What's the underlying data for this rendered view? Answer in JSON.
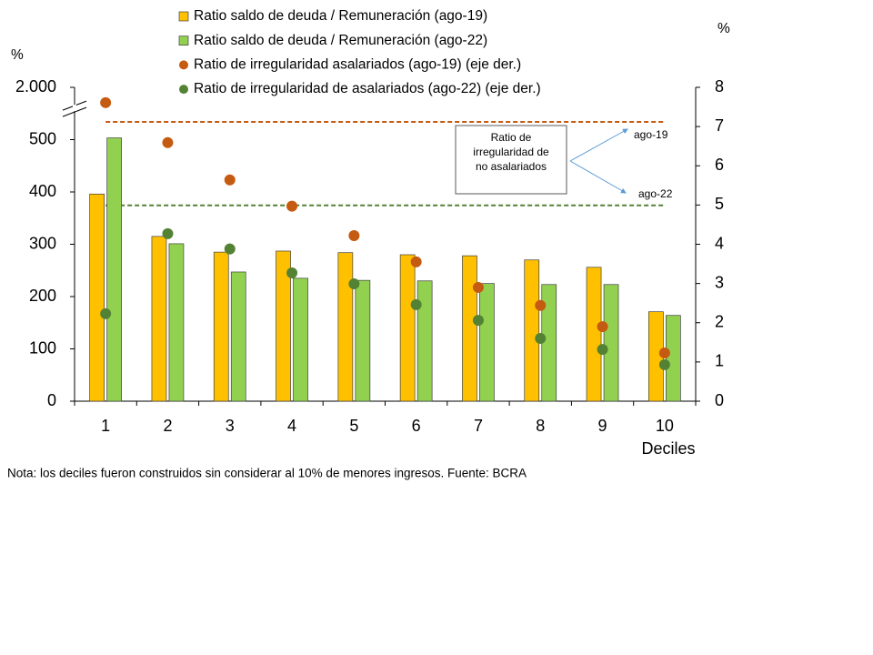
{
  "chart_data": {
    "type": "bar",
    "y_label": "%",
    "y2_label": "%",
    "x_label": "Deciles",
    "note": "Nota: los deciles fueron construidos sin considerar al 10% de menores ingresos. Fuente: BCRA",
    "categories": [
      "1",
      "2",
      "3",
      "4",
      "5",
      "6",
      "7",
      "8",
      "9",
      "10"
    ],
    "series": [
      {
        "name": "Ratio saldo de deuda / Remuneración (ago-19)",
        "type": "bar",
        "color": "#ffc000",
        "values": [
          396,
          315,
          285,
          287,
          284,
          280,
          278,
          270,
          256,
          171
        ]
      },
      {
        "name": "Ratio saldo de deuda / Remuneración (ago-22)",
        "type": "bar",
        "color": "#92d050",
        "values": [
          550,
          301,
          247,
          235,
          231,
          230,
          225,
          223,
          223,
          164
        ]
      },
      {
        "name": "Ratio de irregularidad asalariados (ago-19) (eje der.)",
        "type": "scatter",
        "axis": "y2",
        "color": "#c55a11",
        "values": [
          7.61,
          6.59,
          5.64,
          4.97,
          4.22,
          3.55,
          2.9,
          2.44,
          1.9,
          1.23
        ]
      },
      {
        "name": "Ratio de irregularidad de asalariados (ago-22) (eje der.)",
        "type": "scatter",
        "axis": "y2",
        "color": "#548235",
        "values": [
          2.23,
          4.27,
          3.88,
          3.27,
          2.99,
          2.46,
          2.06,
          1.6,
          1.32,
          0.93
        ]
      }
    ],
    "ylim": [
      0,
      2000
    ],
    "y_break": 500,
    "yticks": [
      0,
      100,
      200,
      300,
      400,
      500,
      {
        "value": 2000,
        "label": "2.000"
      }
    ],
    "y2lim": [
      0,
      8
    ],
    "y2ticks": [
      0,
      1,
      2,
      3,
      4,
      5,
      6,
      7,
      8
    ],
    "reference_lines": [
      {
        "value": 7.12,
        "axis": "y2",
        "color": "#c55a11",
        "label": "ago-19"
      },
      {
        "value": 4.99,
        "axis": "y2",
        "color": "#548235",
        "label": "ago-22"
      }
    ],
    "annotation": [
      "Ratio de",
      "irregularidad de",
      "no asalariados"
    ]
  }
}
